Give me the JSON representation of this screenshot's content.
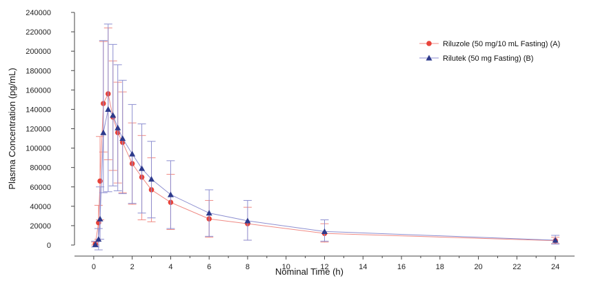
{
  "chart_data": {
    "type": "line",
    "title": "",
    "xlabel": "Nominal Time (h)",
    "ylabel": "Plasma Concentration (pg/mL)",
    "xlim": [
      -1,
      25
    ],
    "ylim": [
      0,
      240000
    ],
    "x_ticks": [
      0,
      2,
      4,
      6,
      8,
      10,
      12,
      14,
      16,
      18,
      20,
      22,
      24
    ],
    "y_ticks": [
      0,
      20000,
      40000,
      60000,
      80000,
      100000,
      120000,
      140000,
      160000,
      180000,
      200000,
      220000,
      240000
    ],
    "y_tick_labels": [
      "0",
      "20000",
      "40000",
      "60000",
      "80000",
      "100000",
      "120000",
      "140000",
      "160000",
      "180000",
      "200000",
      "220000",
      "240000"
    ],
    "x_tick_labels": [
      "0",
      "2",
      "4",
      "6",
      "8",
      "10",
      "12",
      "14",
      "16",
      "18",
      "20",
      "22",
      "24"
    ],
    "grid": false,
    "legend_position": "top-right",
    "series": [
      {
        "name": "Riluzole (50 mg/10 mL Fasting) (A)",
        "marker": "circle",
        "color": "#e8433a",
        "line_color": "#f08a84",
        "points": [
          {
            "x": 0.083,
            "y": 1000,
            "err_low": 1000,
            "err_high": 2000
          },
          {
            "x": 0.25,
            "y": 23000,
            "err_low": 17000,
            "err_high": 18000
          },
          {
            "x": 0.33,
            "y": 66000,
            "err_low": 40000,
            "err_high": 46000
          },
          {
            "x": 0.5,
            "y": 146000,
            "err_low": 50000,
            "err_high": 64000
          },
          {
            "x": 0.75,
            "y": 156000,
            "err_low": 68000,
            "err_high": 68000
          },
          {
            "x": 1.0,
            "y": 132000,
            "err_low": 55000,
            "err_high": 58000
          },
          {
            "x": 1.25,
            "y": 116000,
            "err_low": 52000,
            "err_high": 52000
          },
          {
            "x": 1.5,
            "y": 106000,
            "err_low": 52000,
            "err_high": 52000
          },
          {
            "x": 2.0,
            "y": 84000,
            "err_low": 42000,
            "err_high": 42000
          },
          {
            "x": 2.5,
            "y": 70000,
            "err_low": 44000,
            "err_high": 43000
          },
          {
            "x": 3.0,
            "y": 57000,
            "err_low": 33000,
            "err_high": 33000
          },
          {
            "x": 4.0,
            "y": 44000,
            "err_low": 28000,
            "err_high": 29000
          },
          {
            "x": 6.0,
            "y": 27000,
            "err_low": 19000,
            "err_high": 19000
          },
          {
            "x": 8.0,
            "y": 22000,
            "err_low": 17000,
            "err_high": 17000
          },
          {
            "x": 12.0,
            "y": 12000,
            "err_low": 9000,
            "err_high": 10000
          },
          {
            "x": 24.0,
            "y": 4500,
            "err_low": 3000,
            "err_high": 3500
          }
        ]
      },
      {
        "name": "Rilutek (50 mg Fasting) (B)",
        "marker": "triangle",
        "color": "#2d3a8c",
        "line_color": "#8c8ed0",
        "points": [
          {
            "x": 0.083,
            "y": 500,
            "err_low": 2500,
            "err_high": 3500
          },
          {
            "x": 0.25,
            "y": 6000,
            "err_low": 11000,
            "err_high": 11000
          },
          {
            "x": 0.33,
            "y": 27000,
            "err_low": 21000,
            "err_high": 33000
          },
          {
            "x": 0.5,
            "y": 116000,
            "err_low": 62000,
            "err_high": 95000
          },
          {
            "x": 0.75,
            "y": 140000,
            "err_low": 85000,
            "err_high": 88000
          },
          {
            "x": 1.0,
            "y": 134000,
            "err_low": 73000,
            "err_high": 73000
          },
          {
            "x": 1.25,
            "y": 121000,
            "err_low": 65000,
            "err_high": 65000
          },
          {
            "x": 1.5,
            "y": 110000,
            "err_low": 57000,
            "err_high": 60000
          },
          {
            "x": 2.0,
            "y": 94000,
            "err_low": 51000,
            "err_high": 51000
          },
          {
            "x": 2.5,
            "y": 79000,
            "err_low": 46000,
            "err_high": 46000
          },
          {
            "x": 3.0,
            "y": 68000,
            "err_low": 40000,
            "err_high": 39000
          },
          {
            "x": 4.0,
            "y": 52000,
            "err_low": 35000,
            "err_high": 35000
          },
          {
            "x": 6.0,
            "y": 33000,
            "err_low": 24000,
            "err_high": 24000
          },
          {
            "x": 8.0,
            "y": 25000,
            "err_low": 20000,
            "err_high": 21000
          },
          {
            "x": 12.0,
            "y": 14000,
            "err_low": 10000,
            "err_high": 12000
          },
          {
            "x": 24.0,
            "y": 5000,
            "err_low": 4000,
            "err_high": 5000
          }
        ]
      }
    ]
  }
}
